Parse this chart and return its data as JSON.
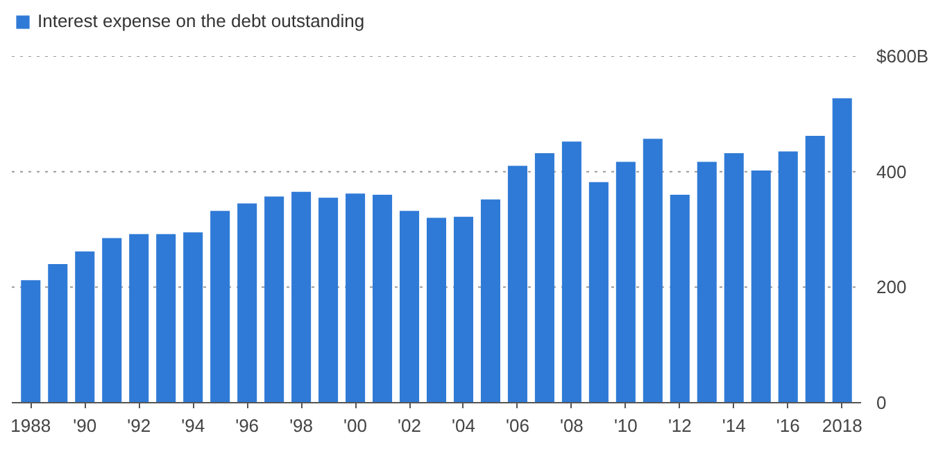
{
  "chart_data": {
    "type": "bar",
    "categories": [
      "1988",
      null,
      "'90",
      null,
      "'92",
      null,
      "'94",
      null,
      "'96",
      null,
      "'98",
      null,
      "'00",
      null,
      "'02",
      null,
      "'04",
      null,
      "'06",
      null,
      "'08",
      null,
      "'10",
      null,
      "'12",
      null,
      "'14",
      null,
      "'16",
      null,
      "2018"
    ],
    "series": [
      {
        "name": "Interest expense on the debt outstanding",
        "color": "#2f7ad6",
        "values": [
          212,
          240,
          262,
          285,
          292,
          292,
          295,
          332,
          345,
          357,
          365,
          355,
          362,
          360,
          332,
          320,
          322,
          352,
          410,
          432,
          452,
          382,
          417,
          457,
          360,
          417,
          432,
          402,
          435,
          462,
          527
        ]
      }
    ],
    "ylim": [
      0,
      600
    ],
    "yticks": [
      0,
      200,
      400,
      {
        "value": 600,
        "label": "$600B"
      }
    ],
    "grid": "y",
    "legend": "top left"
  }
}
